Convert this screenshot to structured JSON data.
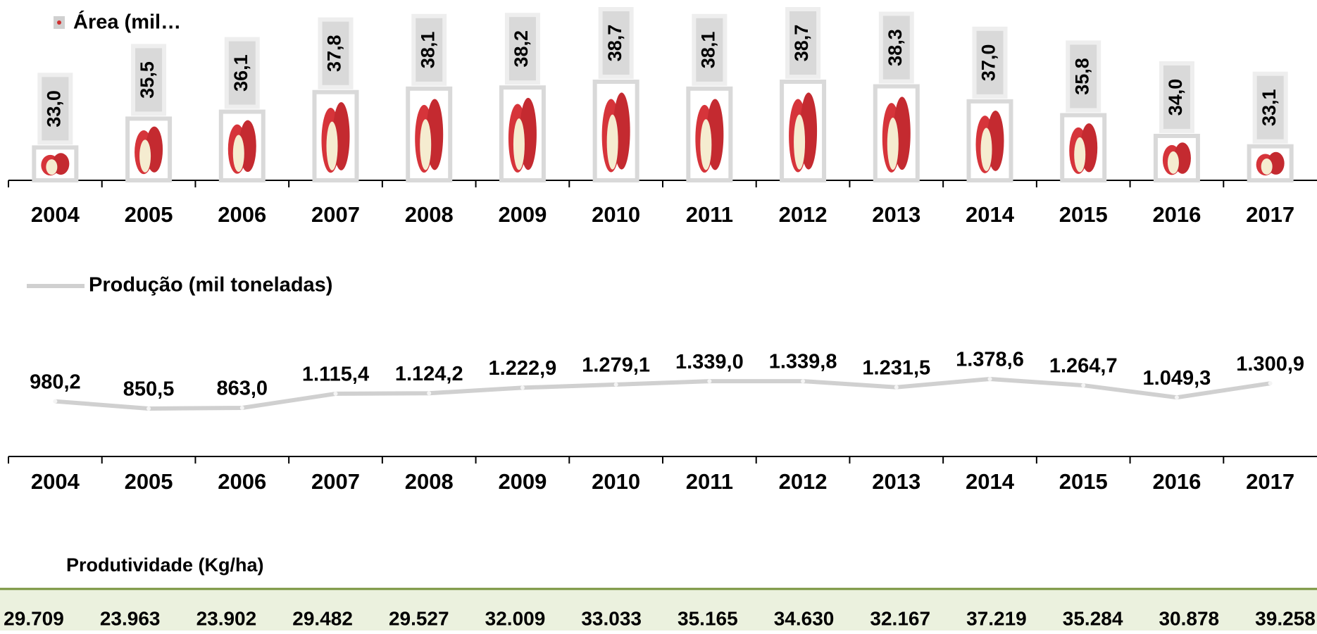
{
  "chart_data": [
    {
      "type": "bar",
      "legend": "Área (mil…",
      "color": "#d9d9d9",
      "categories": [
        "2004",
        "2005",
        "2006",
        "2007",
        "2008",
        "2009",
        "2010",
        "2011",
        "2012",
        "2013",
        "2014",
        "2015",
        "2016",
        "2017"
      ],
      "values": [
        33.0,
        35.5,
        36.1,
        37.8,
        38.1,
        38.2,
        38.7,
        38.1,
        38.7,
        38.3,
        37.0,
        35.8,
        34.0,
        33.1
      ],
      "value_labels": [
        "33,0",
        "35,5",
        "36,1",
        "37,8",
        "38,1",
        "38,2",
        "38,7",
        "38,1",
        "38,7",
        "38,3",
        "37,0",
        "35,8",
        "34,0",
        "33,1"
      ]
    },
    {
      "type": "line",
      "color": "#d0d0d0",
      "categories": [
        "2004",
        "2005",
        "2006",
        "2007",
        "2008",
        "2009",
        "2010",
        "2011",
        "2012",
        "2013",
        "2014",
        "2015",
        "2016",
        "2017"
      ],
      "series": [
        {
          "name": "Produção (mil toneladas)",
          "color": "#d0d0d0",
          "values": [
            980.2,
            850.5,
            863.0,
            1115.4,
            1124.2,
            1222.9,
            1279.1,
            1339.0,
            1339.8,
            1231.5,
            1378.6,
            1264.7,
            1049.3,
            1300.9
          ],
          "value_labels": [
            "980,2",
            "850,5",
            "863,0",
            "1.115,4",
            "1.124,2",
            "1.222,9",
            "1.279,1",
            "1.339,0",
            "1.339,8",
            "1.231,5",
            "1.378,6",
            "1.264,7",
            "1.049,3",
            "1.300,9"
          ]
        }
      ]
    },
    {
      "type": "table",
      "title": "Produtividade (Kg/ha)",
      "values": [
        29709,
        23963,
        23902,
        29482,
        29527,
        32009,
        33033,
        35165,
        34630,
        32167,
        37219,
        35284,
        30878,
        39258
      ],
      "value_labels": [
        "29.709",
        "23.963",
        "23.902",
        "29.482",
        "29.527",
        "32.009",
        "33.033",
        "35.165",
        "34.630",
        "32.167",
        "37.219",
        "35.284",
        "30.878",
        "39.258"
      ]
    }
  ]
}
